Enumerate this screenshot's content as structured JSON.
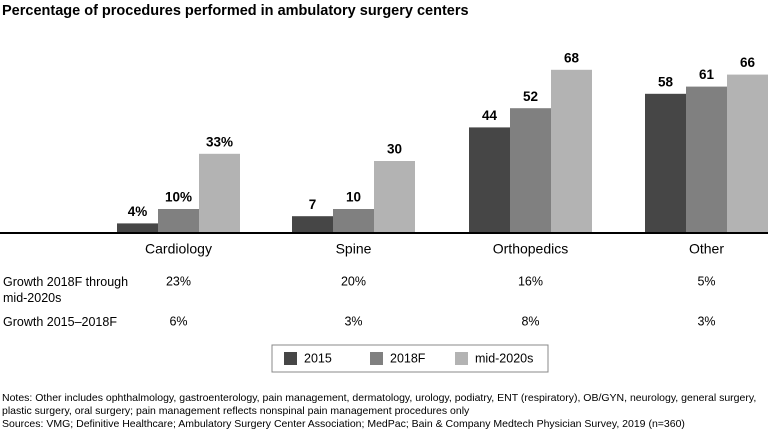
{
  "chart_data": {
    "type": "bar",
    "title": "Percentage of procedures performed in ambulatory surgery centers",
    "categories": [
      "Cardiology",
      "Spine",
      "Orthopedics",
      "Other"
    ],
    "series": [
      {
        "name": "2015",
        "color": "#464646",
        "values": [
          4,
          7,
          44,
          58
        ],
        "value_labels": [
          "4%",
          "7",
          "44",
          "58"
        ]
      },
      {
        "name": "2018F",
        "color": "#808080",
        "values": [
          10,
          10,
          52,
          61
        ],
        "value_labels": [
          "10%",
          "10",
          "52",
          "61"
        ]
      },
      {
        "name": "mid-2020s",
        "color": "#b3b3b3",
        "values": [
          33,
          30,
          68,
          66
        ],
        "value_labels": [
          "33%",
          "30",
          "68",
          "66"
        ]
      }
    ],
    "ylim": [
      0,
      75
    ],
    "legend": "bottom",
    "growth_rows": [
      {
        "label": "Growth 2018F through mid-2020s",
        "values": [
          "23%",
          "20%",
          "16%",
          "5%"
        ]
      },
      {
        "label": "Growth 2015–2018F",
        "values": [
          "6%",
          "3%",
          "8%",
          "3%"
        ]
      }
    ],
    "notes": "Notes: Other includes ophthalmology, gastroenterology, pain management, dermatology, urology, podiatry, ENT (respiratory), OB/GYN, neurology, general surgery, plastic surgery, oral surgery; pain management reflects nonspinal pain management procedures only",
    "sources": "Sources: VMG; Definitive Healthcare; Ambulatory Surgery Center Association; MedPac; Bain & Company Medtech Physician Survey, 2019 (n=360)"
  }
}
